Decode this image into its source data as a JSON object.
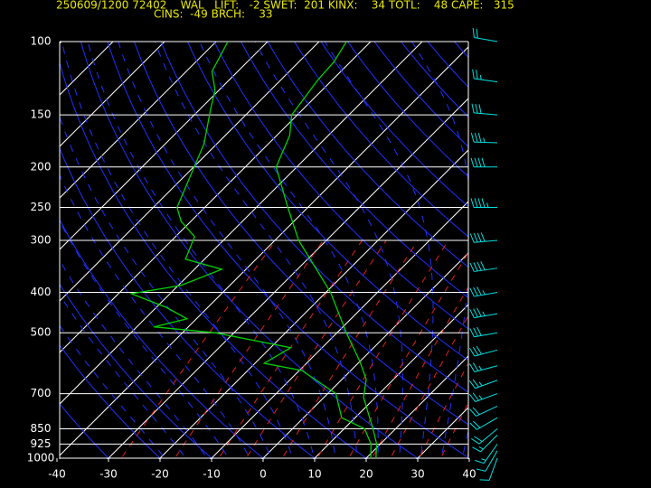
{
  "chart_data": {
    "type": "skewt",
    "title": "250609/1200 72402    WAL   LIFT:   -2 SWET:  201 KINX:    34 TOTL:    48 CAPE:   315",
    "subtitle": "CINS:  -49 BRCH:    33",
    "xlim": [
      -40,
      40
    ],
    "xticks": [
      -40,
      -30,
      -20,
      -10,
      0,
      10,
      20,
      30,
      40
    ],
    "ylim": [
      1000,
      100
    ],
    "yticks": [
      100,
      150,
      200,
      250,
      300,
      400,
      500,
      700,
      850,
      925,
      1000
    ],
    "log_scale": true,
    "grid": true,
    "series": [
      {
        "color": "#00d000",
        "pressure": [
          1000,
          925,
          850,
          715,
          647,
          586,
          500,
          400,
          300,
          250,
          200,
          168,
          150,
          124,
          112,
          100
        ],
        "values": [
          21.9,
          19.3,
          15.6,
          7.7,
          4.7,
          0,
          -8.2,
          -19.1,
          -35.4,
          -43.9,
          -54.0,
          -57.5,
          -61.1,
          -62.8,
          -63.2,
          -64.7
        ]
      },
      {
        "color": "#00d000",
        "pressure": [
          1000,
          925,
          850,
          800,
          700,
          616,
          592,
          543,
          500,
          484,
          463,
          434,
          403,
          385,
          352,
          333,
          294,
          270,
          250,
          176,
          144,
          131,
          118,
          100
        ],
        "values": [
          20.9,
          18.2,
          14.0,
          7.4,
          1.6,
          -9.5,
          -18.2,
          -16.1,
          -33.7,
          -46.7,
          -41.8,
          -48.2,
          -57.5,
          -49.5,
          -44.7,
          -53.7,
          -56.3,
          -61.9,
          -65.4,
          -72.5,
          -78.2,
          -80.7,
          -85.0,
          -87.7
        ]
      }
    ],
    "winds": {
      "color": "#00e0e0",
      "pressure": [
        1000,
        960,
        925,
        880,
        850,
        800,
        750,
        700,
        650,
        600,
        550,
        500,
        450,
        400,
        350,
        300,
        250,
        200,
        175,
        150,
        125,
        100
      ],
      "direction": [
        200,
        210,
        215,
        225,
        230,
        240,
        245,
        250,
        250,
        255,
        255,
        260,
        260,
        260,
        262,
        265,
        270,
        270,
        272,
        275,
        278,
        280
      ],
      "speed": [
        10,
        10,
        15,
        15,
        20,
        20,
        20,
        25,
        25,
        25,
        30,
        30,
        35,
        35,
        40,
        40,
        45,
        40,
        35,
        30,
        25,
        20
      ]
    }
  }
}
